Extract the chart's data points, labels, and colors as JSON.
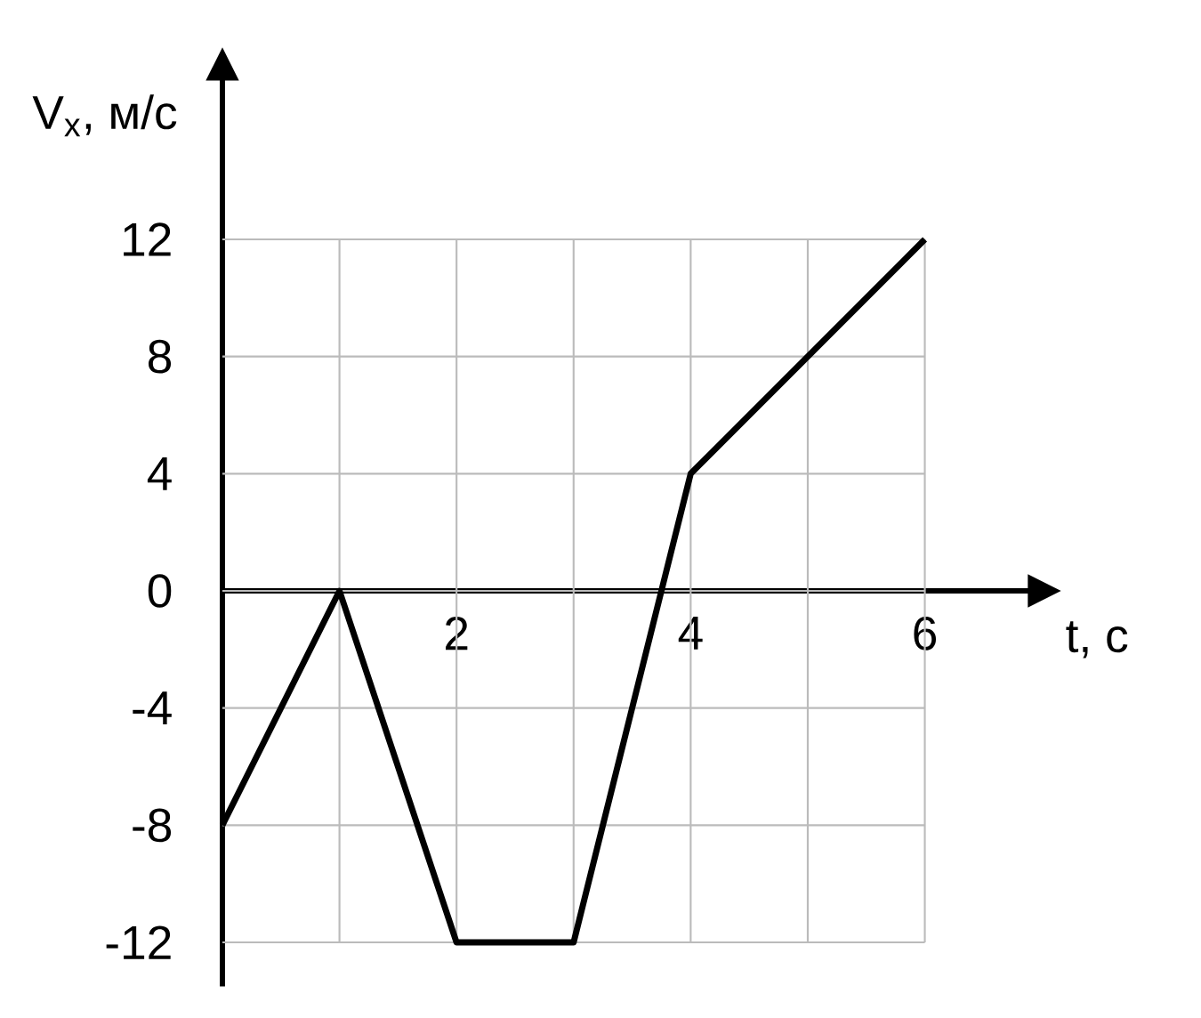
{
  "chart_data": {
    "type": "line",
    "xlabel": "t, с",
    "ylabel": "V$_{x}$, м/с",
    "x": [
      0,
      1,
      2,
      3,
      4,
      6
    ],
    "values": [
      -8,
      0,
      -12,
      -12,
      4,
      12
    ],
    "color": "#000000",
    "xlim": [
      0,
      6.9
    ],
    "ylim": [
      -13.5,
      17.5
    ],
    "xticks": [
      {
        "value": 1,
        "label": null
      },
      2,
      {
        "value": 3,
        "label": null
      },
      4,
      {
        "value": 5,
        "label": null
      },
      6
    ],
    "yticks": [
      -12,
      -8,
      -4,
      0,
      4,
      8,
      12
    ],
    "grid": true,
    "marker": "none",
    "line_style": "solid"
  }
}
